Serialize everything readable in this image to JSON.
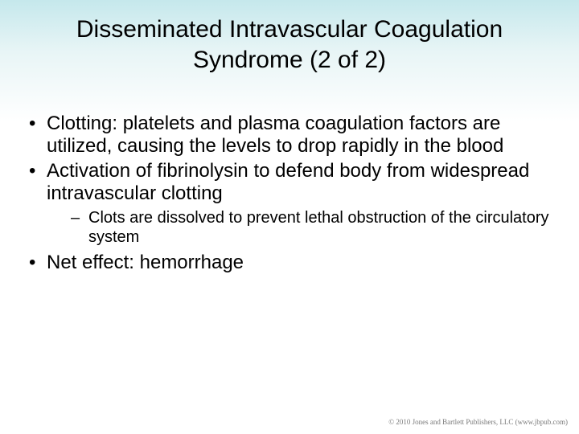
{
  "slide": {
    "background_gradient_top": "#c5e8ec",
    "background_gradient_bottom": "#ffffff",
    "title_color": "#000000",
    "body_color": "#000000",
    "title_fontsize_pt": 30,
    "body_fontsize_pt": 24,
    "sub_fontsize_pt": 20,
    "title_line1": "Disseminated Intravascular Coagulation",
    "title_line2": "Syndrome (2 of 2)",
    "bullets": [
      {
        "text": "Clotting: platelets and plasma coagulation factors are utilized, causing the levels to drop rapidly in the blood",
        "sub": []
      },
      {
        "text": "Activation of fibrinolysin to defend body from widespread intravascular clotting",
        "sub": [
          "Clots are dissolved to prevent lethal obstruction of the circulatory system"
        ]
      },
      {
        "text": "Net effect: hemorrhage",
        "sub": []
      }
    ],
    "copyright": "© 2010 Jones and Bartlett Publishers, LLC (www.jbpub.com)"
  }
}
